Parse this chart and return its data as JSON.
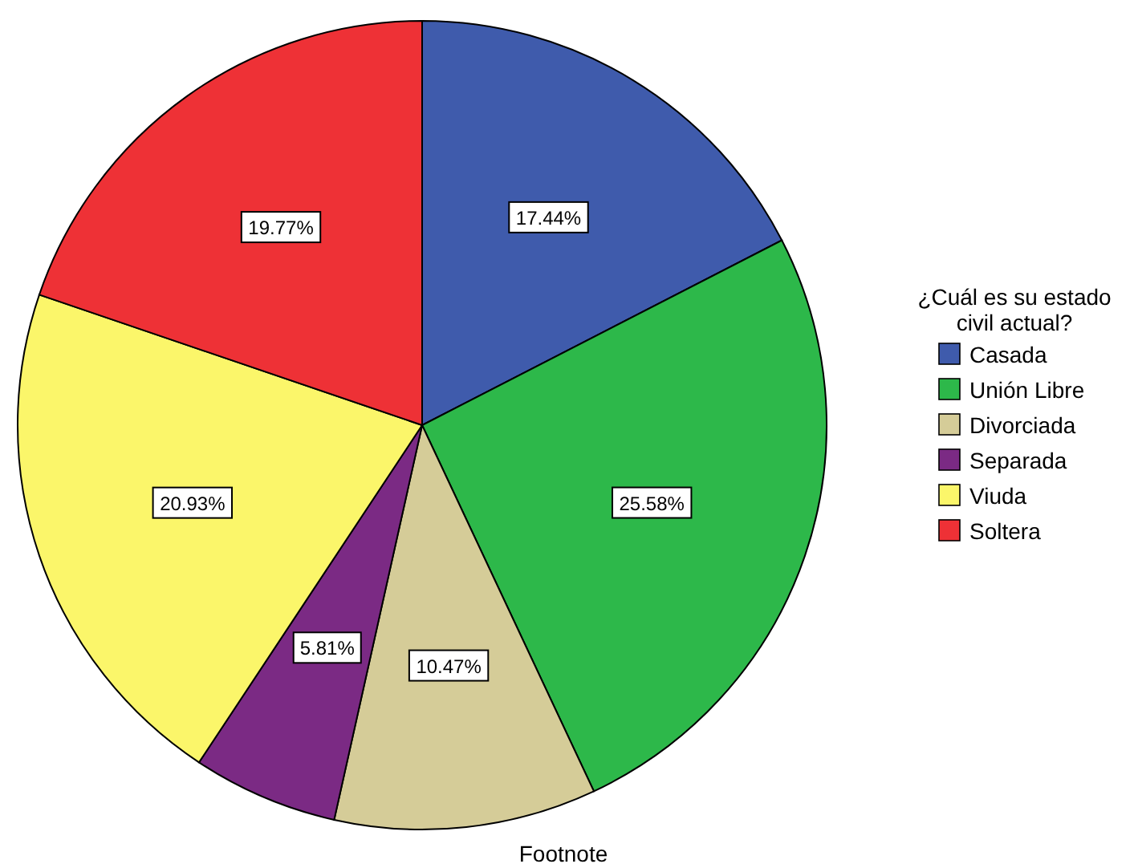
{
  "chart_data": {
    "type": "pie",
    "legend_title": "¿Cuál es su estado civil actual?",
    "categories": [
      "Casada",
      "Unión Libre",
      "Divorciada",
      "Separada",
      "Viuda",
      "Soltera"
    ],
    "values": [
      17.44,
      25.58,
      10.47,
      5.81,
      20.93,
      19.77
    ],
    "colors": [
      "#3f5bac",
      "#2db84a",
      "#d5cc98",
      "#7b2a84",
      "#fbf66a",
      "#ee3136"
    ],
    "value_labels": [
      "17.44%",
      "25.58%",
      "10.47%",
      "5.81%",
      "20.93%",
      "19.77%"
    ],
    "legend": "right",
    "annotations": [
      "Footnote"
    ]
  }
}
